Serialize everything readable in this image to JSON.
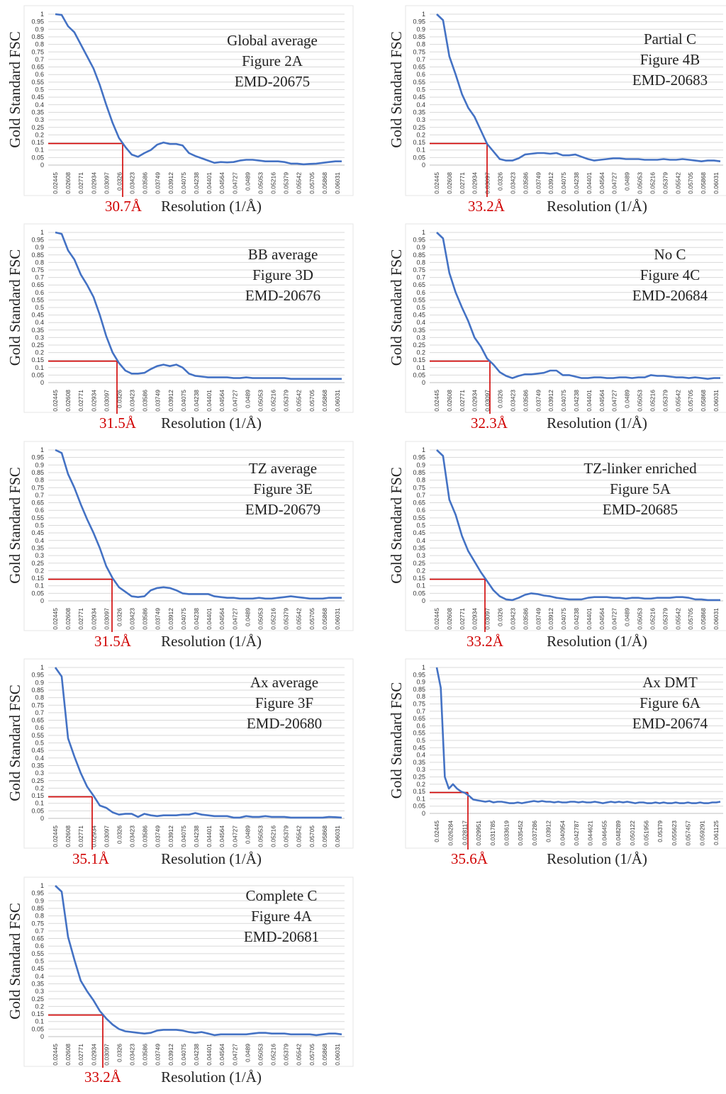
{
  "colors": {
    "curve": "#4472C4",
    "threshold": "#D00000",
    "grid": "#D9D9D9",
    "axis": "#BFBFBF"
  },
  "threshold_fsc": 0.143,
  "chart_data": [
    {
      "type": "line",
      "annotation": [
        "Global average",
        "Figure 2A",
        "EMD-20675"
      ],
      "ylabel": "Gold Standard FSC",
      "xlabel": "Resolution (1/Å)",
      "cutoff_label": "30.7Å",
      "cutoff_x": 0.0326,
      "ylim": [
        0,
        1
      ],
      "yticks": [
        "0",
        "0.05",
        "0.1",
        "0.15",
        "0.2",
        "0.25",
        "0.3",
        "0.35",
        "0.4",
        "0.45",
        "0.5",
        "0.55",
        "0.6",
        "0.65",
        "0.7",
        "0.75",
        "0.8",
        "0.85",
        "0.9",
        "0.95",
        "1"
      ],
      "xticks": [
        "0.02445",
        "0.02608",
        "0.02771",
        "0.02934",
        "0.03097",
        "0.0326",
        "0.03423",
        "0.03586",
        "0.03749",
        "0.03912",
        "0.04075",
        "0.04238",
        "0.04401",
        "0.04564",
        "0.04727",
        "0.0489",
        "0.05053",
        "0.05216",
        "0.05379",
        "0.05542",
        "0.05705",
        "0.05868",
        "0.06031"
      ],
      "grid": true,
      "values": [
        1.0,
        0.995,
        0.92,
        0.88,
        0.8,
        0.72,
        0.64,
        0.53,
        0.4,
        0.28,
        0.18,
        0.12,
        0.07,
        0.055,
        0.08,
        0.1,
        0.135,
        0.15,
        0.14,
        0.14,
        0.13,
        0.08,
        0.06,
        0.045,
        0.03,
        0.015,
        0.02,
        0.018,
        0.02,
        0.03,
        0.035,
        0.035,
        0.03,
        0.025,
        0.025,
        0.025,
        0.02,
        0.01,
        0.01,
        0.005,
        0.008,
        0.01,
        0.015,
        0.02,
        0.025,
        0.025
      ]
    },
    {
      "type": "line",
      "annotation": [
        "Partial C",
        "Figure 4B",
        "EMD-20683"
      ],
      "ylabel": "Gold Standard FSC",
      "xlabel": "Resolution (1/Å)",
      "cutoff_label": "33.2Å",
      "cutoff_x": 0.03097,
      "ylim": [
        0,
        1
      ],
      "yticks": [
        "0",
        "0.05",
        "0.1",
        "0.15",
        "0.2",
        "0.25",
        "0.3",
        "0.35",
        "0.4",
        "0.45",
        "0.5",
        "0.55",
        "0.6",
        "0.65",
        "0.7",
        "0.75",
        "0.8",
        "0.85",
        "0.9",
        "0.95",
        "1"
      ],
      "xticks": [
        "0.02445",
        "0.02608",
        "0.02771",
        "0.02934",
        "0.03097",
        "0.0326",
        "0.03423",
        "0.03586",
        "0.03749",
        "0.03912",
        "0.04075",
        "0.04238",
        "0.04401",
        "0.04564",
        "0.04727",
        "0.0489",
        "0.05053",
        "0.05216",
        "0.05379",
        "0.05542",
        "0.05705",
        "0.05868",
        "0.06031"
      ],
      "grid": true,
      "values": [
        1.0,
        0.96,
        0.72,
        0.6,
        0.47,
        0.38,
        0.32,
        0.23,
        0.14,
        0.09,
        0.04,
        0.03,
        0.03,
        0.045,
        0.07,
        0.075,
        0.08,
        0.08,
        0.075,
        0.08,
        0.065,
        0.065,
        0.07,
        0.055,
        0.04,
        0.03,
        0.035,
        0.04,
        0.045,
        0.045,
        0.04,
        0.04,
        0.04,
        0.035,
        0.035,
        0.035,
        0.04,
        0.035,
        0.035,
        0.04,
        0.035,
        0.03,
        0.025,
        0.03,
        0.03,
        0.025
      ]
    },
    {
      "type": "line",
      "annotation": [
        "BB average",
        "Figure 3D",
        "EMD-20676"
      ],
      "ylabel": "Gold Standard FSC",
      "xlabel": "Resolution (1/Å)",
      "cutoff_label": "31.5Å",
      "cutoff_x": 0.0326,
      "ylim": [
        0,
        1
      ],
      "yticks": [
        "0",
        "0.05",
        "0.1",
        "0.15",
        "0.2",
        "0.25",
        "0.3",
        "0.35",
        "0.4",
        "0.45",
        "0.5",
        "0.55",
        "0.6",
        "0.65",
        "0.7",
        "0.75",
        "0.8",
        "0.85",
        "0.9",
        "0.95",
        "1"
      ],
      "xticks": [
        "0.02445",
        "0.02608",
        "0.02771",
        "0.02934",
        "0.03097",
        "0.0326",
        "0.03423",
        "0.03586",
        "0.03749",
        "0.03912",
        "0.04075",
        "0.04238",
        "0.04401",
        "0.04564",
        "0.04727",
        "0.0489",
        "0.05053",
        "0.05216",
        "0.05379",
        "0.05542",
        "0.05705",
        "0.05868",
        "0.06031"
      ],
      "grid": true,
      "values": [
        1.0,
        0.99,
        0.88,
        0.82,
        0.72,
        0.65,
        0.57,
        0.45,
        0.31,
        0.2,
        0.13,
        0.08,
        0.06,
        0.06,
        0.065,
        0.09,
        0.11,
        0.12,
        0.11,
        0.12,
        0.1,
        0.06,
        0.045,
        0.04,
        0.035,
        0.035,
        0.035,
        0.035,
        0.03,
        0.03,
        0.035,
        0.03,
        0.03,
        0.03,
        0.03,
        0.03,
        0.03,
        0.025,
        0.025,
        0.025,
        0.025,
        0.025,
        0.025,
        0.025,
        0.025,
        0.025
      ]
    },
    {
      "type": "line",
      "annotation": [
        "No C",
        "Figure 4C",
        "EMD-20684"
      ],
      "ylabel": "Gold Standard FSC",
      "xlabel": "Resolution (1/Å)",
      "cutoff_label": "32.3Å",
      "cutoff_x": 0.03097,
      "ylim": [
        0,
        1
      ],
      "yticks": [
        "0",
        "0.05",
        "0.1",
        "0.15",
        "0.2",
        "0.25",
        "0.3",
        "0.35",
        "0.4",
        "0.45",
        "0.5",
        "0.55",
        "0.6",
        "0.65",
        "0.7",
        "0.75",
        "0.8",
        "0.85",
        "0.9",
        "0.95",
        "1"
      ],
      "xticks": [
        "0.02445",
        "0.02608",
        "0.02771",
        "0.02934",
        "0.03097",
        "0.0326",
        "0.03423",
        "0.03586",
        "0.03749",
        "0.03912",
        "0.04075",
        "0.04238",
        "0.04401",
        "0.04564",
        "0.04727",
        "0.0489",
        "0.05053",
        "0.05216",
        "0.05379",
        "0.05542",
        "0.05705",
        "0.05868",
        "0.06031"
      ],
      "grid": true,
      "values": [
        1.0,
        0.96,
        0.73,
        0.6,
        0.5,
        0.41,
        0.3,
        0.24,
        0.16,
        0.12,
        0.07,
        0.045,
        0.03,
        0.045,
        0.055,
        0.055,
        0.06,
        0.065,
        0.08,
        0.08,
        0.05,
        0.05,
        0.04,
        0.03,
        0.03,
        0.035,
        0.035,
        0.03,
        0.03,
        0.035,
        0.035,
        0.03,
        0.035,
        0.035,
        0.05,
        0.045,
        0.045,
        0.04,
        0.035,
        0.035,
        0.03,
        0.035,
        0.03,
        0.025,
        0.03,
        0.03
      ]
    },
    {
      "type": "line",
      "annotation": [
        "TZ average",
        "Figure 3E",
        "EMD-20679"
      ],
      "ylabel": "Gold Standard FSC",
      "xlabel": "Resolution (1/Å)",
      "cutoff_label": "31.5Å",
      "cutoff_x": 0.03097,
      "ylim": [
        0,
        1
      ],
      "yticks": [
        "0",
        "0.05",
        "0.1",
        "0.15",
        "0.2",
        "0.25",
        "0.3",
        "0.35",
        "0.4",
        "0.45",
        "0.5",
        "0.55",
        "0.6",
        "0.65",
        "0.7",
        "0.75",
        "0.8",
        "0.85",
        "0.9",
        "0.95",
        "1"
      ],
      "xticks": [
        "0.02445",
        "0.02608",
        "0.02771",
        "0.02934",
        "0.03097",
        "0.0326",
        "0.03423",
        "0.03586",
        "0.03749",
        "0.03912",
        "0.04075",
        "0.04238",
        "0.04401",
        "0.04564",
        "0.04727",
        "0.0489",
        "0.05053",
        "0.05216",
        "0.05379",
        "0.05542",
        "0.05705",
        "0.05868",
        "0.06031"
      ],
      "grid": true,
      "values": [
        1.0,
        0.98,
        0.84,
        0.75,
        0.64,
        0.54,
        0.45,
        0.35,
        0.23,
        0.15,
        0.09,
        0.06,
        0.03,
        0.025,
        0.03,
        0.07,
        0.085,
        0.09,
        0.085,
        0.07,
        0.05,
        0.045,
        0.045,
        0.045,
        0.045,
        0.03,
        0.025,
        0.02,
        0.02,
        0.015,
        0.015,
        0.015,
        0.02,
        0.015,
        0.015,
        0.02,
        0.025,
        0.03,
        0.025,
        0.02,
        0.015,
        0.015,
        0.015,
        0.02,
        0.02,
        0.02
      ]
    },
    {
      "type": "line",
      "annotation": [
        "TZ-linker enriched",
        "Figure 5A",
        "EMD-20685"
      ],
      "ylabel": "Gold Standard FSC",
      "xlabel": "Resolution (1/Å)",
      "cutoff_label": "33.2Å",
      "cutoff_x": 0.03097,
      "ylim": [
        0,
        1
      ],
      "yticks": [
        "0",
        "0.05",
        "0.1",
        "0.15",
        "0.2",
        "0.25",
        "0.3",
        "0.35",
        "0.4",
        "0.45",
        "0.5",
        "0.55",
        "0.6",
        "0.65",
        "0.7",
        "0.75",
        "0.8",
        "0.85",
        "0.9",
        "0.95",
        "1"
      ],
      "xticks": [
        "0.02445",
        "0.02608",
        "0.02771",
        "0.02934",
        "0.03097",
        "0.0326",
        "0.03423",
        "0.03586",
        "0.03749",
        "0.03912",
        "0.04075",
        "0.04238",
        "0.04401",
        "0.04564",
        "0.04727",
        "0.0489",
        "0.05053",
        "0.05216",
        "0.05379",
        "0.05542",
        "0.05705",
        "0.05868",
        "0.06031"
      ],
      "grid": true,
      "values": [
        1.0,
        0.96,
        0.67,
        0.57,
        0.43,
        0.33,
        0.26,
        0.19,
        0.13,
        0.07,
        0.03,
        0.01,
        0.005,
        0.02,
        0.04,
        0.05,
        0.045,
        0.035,
        0.03,
        0.02,
        0.015,
        0.01,
        0.01,
        0.01,
        0.02,
        0.025,
        0.025,
        0.025,
        0.02,
        0.02,
        0.015,
        0.02,
        0.02,
        0.015,
        0.015,
        0.02,
        0.02,
        0.02,
        0.025,
        0.025,
        0.02,
        0.01,
        0.01,
        0.005,
        0.005,
        0.005
      ]
    },
    {
      "type": "line",
      "annotation": [
        "Ax average",
        "Figure 3F",
        "EMD-20680"
      ],
      "ylabel": "Gold Standard FSC",
      "xlabel": "Resolution (1/Å)",
      "cutoff_label": "35.1Å",
      "cutoff_x": 0.02934,
      "ylim": [
        0,
        1
      ],
      "yticks": [
        "0",
        "0.05",
        "0.1",
        "0.15",
        "0.2",
        "0.25",
        "0.3",
        "0.35",
        "0.4",
        "0.45",
        "0.5",
        "0.55",
        "0.6",
        "0.65",
        "0.7",
        "0.75",
        "0.8",
        "0.85",
        "0.9",
        "0.95",
        "1"
      ],
      "xticks": [
        "0.02445",
        "0.02608",
        "0.02771",
        "0.02934",
        "0.03097",
        "0.0326",
        "0.03423",
        "0.03586",
        "0.03749",
        "0.03912",
        "0.04075",
        "0.04238",
        "0.04401",
        "0.04564",
        "0.04727",
        "0.0489",
        "0.05053",
        "0.05216",
        "0.05379",
        "0.05542",
        "0.05705",
        "0.05868",
        "0.06031"
      ],
      "grid": true,
      "values": [
        1.0,
        0.94,
        0.53,
        0.41,
        0.3,
        0.21,
        0.15,
        0.085,
        0.07,
        0.04,
        0.025,
        0.03,
        0.03,
        0.01,
        0.03,
        0.02,
        0.015,
        0.02,
        0.02,
        0.02,
        0.025,
        0.025,
        0.035,
        0.025,
        0.02,
        0.015,
        0.015,
        0.015,
        0.005,
        0.005,
        0.015,
        0.01,
        0.01,
        0.015,
        0.01,
        0.01,
        0.01,
        0.005,
        0.005,
        0.005,
        0.005,
        0.005,
        0.005,
        0.01,
        0.008,
        0.005
      ]
    },
    {
      "type": "line",
      "annotation": [
        "Ax DMT",
        "Figure 6A",
        "EMD-20674"
      ],
      "ylabel": "Gold Standard FSC",
      "xlabel": "Resolution (1/Å)",
      "cutoff_label": "35.6Å",
      "cutoff_x": 0.028117,
      "ylim": [
        0,
        1
      ],
      "yticks": [
        "0",
        "0.05",
        "0.1",
        "0.15",
        "0.2",
        "0.25",
        "0.3",
        "0.35",
        "0.4",
        "0.45",
        "0.5",
        "0.55",
        "0.6",
        "0.65",
        "0.7",
        "0.75",
        "0.8",
        "0.85",
        "0.9",
        "0.95",
        "1"
      ],
      "xticks": [
        "0.02445",
        "0.026284",
        "0.028117",
        "0.029951",
        "0.031785",
        "0.033619",
        "0.035452",
        "0.037286",
        "0.03912",
        "0.040954",
        "0.042787",
        "0.044621",
        "0.046455",
        "0.048289",
        "0.050122",
        "0.051956",
        "0.05379",
        "0.055623",
        "0.057457",
        "0.059291",
        "0.061125"
      ],
      "grid": true,
      "values": [
        1.0,
        0.86,
        0.25,
        0.17,
        0.2,
        0.17,
        0.15,
        0.14,
        0.12,
        0.095,
        0.09,
        0.085,
        0.08,
        0.085,
        0.075,
        0.08,
        0.08,
        0.075,
        0.07,
        0.07,
        0.075,
        0.07,
        0.075,
        0.08,
        0.085,
        0.08,
        0.085,
        0.08,
        0.08,
        0.075,
        0.08,
        0.075,
        0.075,
        0.08,
        0.08,
        0.075,
        0.08,
        0.075,
        0.075,
        0.08,
        0.075,
        0.07,
        0.075,
        0.08,
        0.075,
        0.08,
        0.075,
        0.08,
        0.075,
        0.07,
        0.075,
        0.075,
        0.07,
        0.07,
        0.075,
        0.07,
        0.075,
        0.07,
        0.07,
        0.075,
        0.07,
        0.07,
        0.075,
        0.07,
        0.07,
        0.075,
        0.07,
        0.07,
        0.075,
        0.075,
        0.08
      ]
    },
    {
      "type": "line",
      "annotation": [
        "Complete C",
        "Figure 4A",
        "EMD-20681"
      ],
      "ylabel": "Gold Standard FSC",
      "xlabel": "Resolution (1/Å)",
      "cutoff_label": "33.2Å",
      "cutoff_x": 0.03097,
      "ylim": [
        0,
        1
      ],
      "yticks": [
        "0",
        "0.05",
        "0.1",
        "0.15",
        "0.2",
        "0.25",
        "0.3",
        "0.35",
        "0.4",
        "0.45",
        "0.5",
        "0.55",
        "0.6",
        "0.65",
        "0.7",
        "0.75",
        "0.8",
        "0.85",
        "0.9",
        "0.95",
        "1"
      ],
      "xticks": [
        "0.02445",
        "0.02608",
        "0.02771",
        "0.02934",
        "0.03097",
        "0.0326",
        "0.03423",
        "0.03586",
        "0.03749",
        "0.03912",
        "0.04075",
        "0.04238",
        "0.04401",
        "0.04564",
        "0.04727",
        "0.0489",
        "0.05053",
        "0.05216",
        "0.05379",
        "0.05542",
        "0.05705",
        "0.05868",
        "0.06031"
      ],
      "grid": true,
      "values": [
        1.0,
        0.96,
        0.66,
        0.51,
        0.37,
        0.3,
        0.24,
        0.17,
        0.12,
        0.08,
        0.05,
        0.035,
        0.03,
        0.025,
        0.02,
        0.025,
        0.04,
        0.045,
        0.045,
        0.045,
        0.04,
        0.03,
        0.025,
        0.03,
        0.02,
        0.01,
        0.015,
        0.015,
        0.015,
        0.015,
        0.015,
        0.02,
        0.025,
        0.025,
        0.02,
        0.02,
        0.02,
        0.015,
        0.015,
        0.015,
        0.015,
        0.01,
        0.015,
        0.02,
        0.02,
        0.015
      ]
    }
  ]
}
